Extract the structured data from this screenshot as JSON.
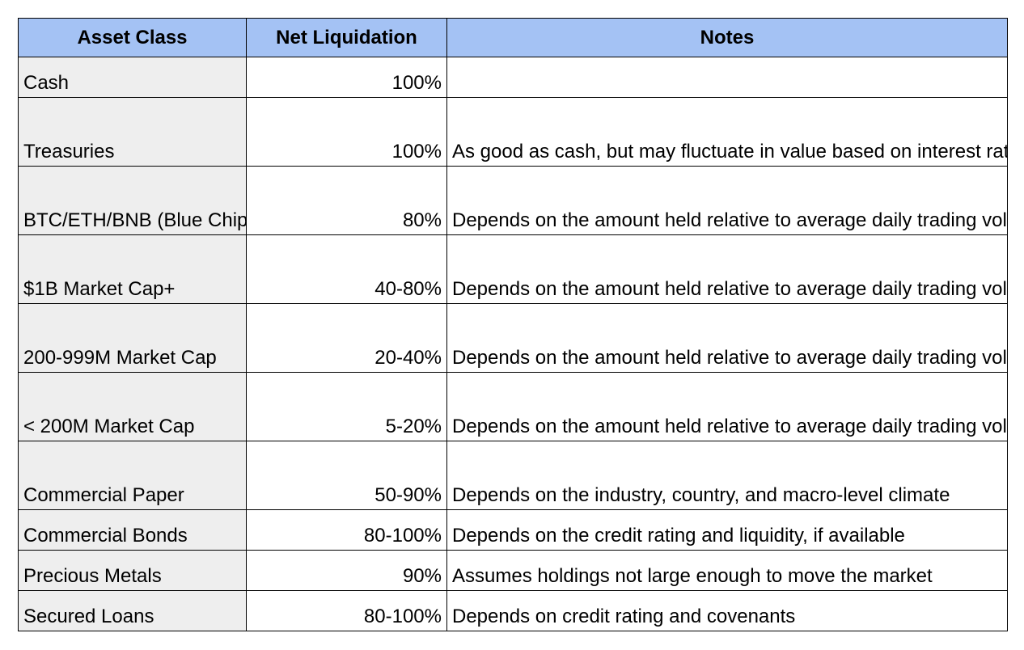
{
  "table": {
    "headers": {
      "asset_class": "Asset Class",
      "net_liquidation": "Net Liquidation",
      "notes": "Notes"
    },
    "rows": [
      {
        "asset": "Cash",
        "net": "100%",
        "notes": ""
      },
      {
        "asset": "Treasuries",
        "net": "100%",
        "notes": "As good as cash, but may fluctuate in value based on interest rates and maturities"
      },
      {
        "asset": "BTC/ETH/BNB (Blue Chips)",
        "net": "80%",
        "notes": "Depends on the amount held relative to average daily trading volumes, but these should be conservative"
      },
      {
        "asset": "$1B Market Cap+",
        "net": "40-80%",
        "notes": "Depends on the amount held relative to average daily trading volumes, but these should be conservative"
      },
      {
        "asset": "200-999M Market Cap",
        "net": "20-40%",
        "notes": "Depends on the amount held relative to average daily trading volumes, but these should be conservative"
      },
      {
        "asset": "< 200M Market Cap",
        "net": "5-20%",
        "notes": "Depends on the amount held relative to average daily trading volumes, but these should be conservative"
      },
      {
        "asset": "Commercial Paper",
        "net": "50-90%",
        "notes": "Depends on the industry, country, and macro-level climate"
      },
      {
        "asset": "Commercial Bonds",
        "net": "80-100%",
        "notes": "Depends on the credit rating and liquidity, if available"
      },
      {
        "asset": "Precious Metals",
        "net": "90%",
        "notes": "Assumes holdings not large enough to move the market"
      },
      {
        "asset": "Secured Loans",
        "net": "80-100%",
        "notes": "Depends on credit rating and covenants"
      }
    ]
  },
  "colors": {
    "header_bg": "#a4c2f4",
    "asset_col_bg": "#eeeeee",
    "border": "#000000"
  }
}
